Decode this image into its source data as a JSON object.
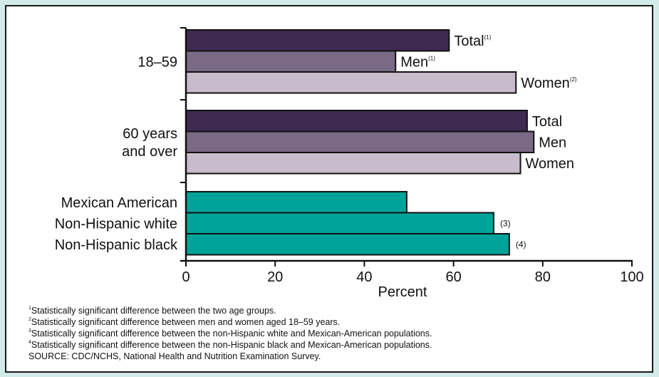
{
  "chart_data": {
    "type": "bar",
    "orientation": "horizontal",
    "xlabel": "Percent",
    "xlim": [
      0,
      100
    ],
    "xticks": [
      "0",
      "20",
      "40",
      "60",
      "80",
      "100"
    ],
    "groups": [
      {
        "label_lines": [
          "18–59"
        ],
        "bars": [
          {
            "label": "Total",
            "note": "(1)",
            "value": 59,
            "color": "#3f2a52"
          },
          {
            "label": "Men",
            "note": "(1)",
            "value": 47,
            "color": "#7a6a86"
          },
          {
            "label": "Women",
            "note": "(2)",
            "value": 74,
            "color": "#c8bccc"
          }
        ]
      },
      {
        "label_lines": [
          "60 years",
          "and over"
        ],
        "bars": [
          {
            "label": "Total",
            "note": "",
            "value": 76.5,
            "color": "#3f2a52"
          },
          {
            "label": "Men",
            "note": "",
            "value": 78,
            "color": "#7a6a86"
          },
          {
            "label": "Women",
            "note": "",
            "value": 75,
            "color": "#c8bccc"
          }
        ]
      },
      {
        "label_lines": [],
        "bars": [
          {
            "category": "Mexican American",
            "label": "",
            "note": "",
            "value": 49.5,
            "color": "#00a39a"
          },
          {
            "category": "Non-Hispanic white",
            "label": "",
            "note": "(3)",
            "value": 69,
            "color": "#00a39a"
          },
          {
            "category": "Non-Hispanic black",
            "label": "",
            "note": "(4)",
            "value": 72.5,
            "color": "#00a39a"
          }
        ]
      }
    ]
  },
  "footnotes": [
    {
      "num": "1",
      "text": "Statistically significant difference between the two age groups."
    },
    {
      "num": "2",
      "text": "Statistically significant difference between men and women aged 18–59 years."
    },
    {
      "num": "3",
      "text": "Statistically significant difference between the non-Hispanic white and Mexican-American populations."
    },
    {
      "num": "4",
      "text": "Statistically significant difference between the non-Hispanic black and Mexican-American populations."
    }
  ],
  "source": "SOURCE: CDC/NCHS, National Health and Nutrition Examination Survey."
}
